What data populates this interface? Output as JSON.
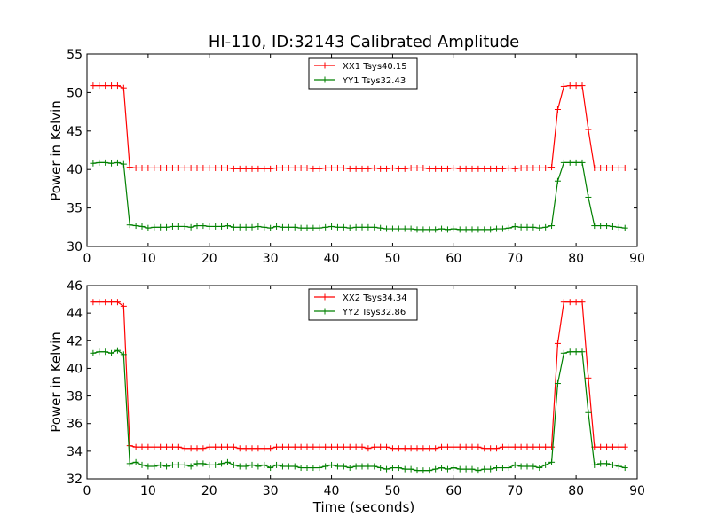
{
  "chart_data": [
    {
      "type": "line",
      "title": "HI-110, ID:32143 Calibrated Amplitude",
      "xlabel": "",
      "ylabel": "Power in Kelvin",
      "xlim": [
        0,
        90
      ],
      "ylim": [
        30,
        55
      ],
      "xticks": [
        "0",
        "10",
        "20",
        "30",
        "40",
        "50",
        "60",
        "70",
        "80",
        "90"
      ],
      "yticks": [
        "30",
        "35",
        "40",
        "45",
        "50",
        "55"
      ],
      "legend_position": "top-center",
      "grid": false,
      "x": [
        1,
        2,
        3,
        4,
        5,
        6,
        7,
        8,
        9,
        10,
        11,
        12,
        13,
        14,
        15,
        16,
        17,
        18,
        19,
        20,
        21,
        22,
        23,
        24,
        25,
        26,
        27,
        28,
        29,
        30,
        31,
        32,
        33,
        34,
        35,
        36,
        37,
        38,
        39,
        40,
        41,
        42,
        43,
        44,
        45,
        46,
        47,
        48,
        49,
        50,
        51,
        52,
        53,
        54,
        55,
        56,
        57,
        58,
        59,
        60,
        61,
        62,
        63,
        64,
        65,
        66,
        67,
        68,
        69,
        70,
        71,
        72,
        73,
        74,
        75,
        76,
        77,
        78,
        79,
        80,
        81,
        82,
        83,
        84,
        85,
        86,
        87,
        88
      ],
      "series": [
        {
          "name": "XX1 Tsys40.15",
          "color": "#ff0000",
          "values": [
            50.9,
            50.9,
            50.9,
            50.9,
            50.9,
            50.6,
            40.3,
            40.2,
            40.2,
            40.2,
            40.2,
            40.2,
            40.2,
            40.2,
            40.2,
            40.2,
            40.2,
            40.2,
            40.2,
            40.2,
            40.2,
            40.2,
            40.2,
            40.1,
            40.1,
            40.1,
            40.1,
            40.1,
            40.1,
            40.1,
            40.2,
            40.2,
            40.2,
            40.2,
            40.2,
            40.2,
            40.1,
            40.1,
            40.2,
            40.2,
            40.2,
            40.2,
            40.1,
            40.1,
            40.1,
            40.1,
            40.2,
            40.1,
            40.1,
            40.2,
            40.1,
            40.1,
            40.2,
            40.2,
            40.2,
            40.1,
            40.1,
            40.1,
            40.1,
            40.2,
            40.1,
            40.1,
            40.1,
            40.1,
            40.1,
            40.1,
            40.1,
            40.1,
            40.2,
            40.1,
            40.2,
            40.2,
            40.2,
            40.2,
            40.2,
            40.3,
            47.8,
            50.8,
            50.9,
            50.9,
            50.9,
            45.2,
            40.2,
            40.2,
            40.2,
            40.2,
            40.2,
            40.2
          ]
        },
        {
          "name": "YY1 Tsys32.43",
          "color": "#008000",
          "values": [
            40.8,
            40.9,
            40.9,
            40.8,
            40.9,
            40.7,
            32.8,
            32.7,
            32.6,
            32.4,
            32.5,
            32.5,
            32.5,
            32.6,
            32.6,
            32.6,
            32.5,
            32.7,
            32.7,
            32.6,
            32.6,
            32.6,
            32.7,
            32.5,
            32.5,
            32.5,
            32.5,
            32.6,
            32.5,
            32.4,
            32.6,
            32.5,
            32.5,
            32.5,
            32.4,
            32.4,
            32.4,
            32.4,
            32.5,
            32.6,
            32.5,
            32.5,
            32.4,
            32.5,
            32.5,
            32.5,
            32.5,
            32.4,
            32.3,
            32.3,
            32.3,
            32.3,
            32.3,
            32.2,
            32.2,
            32.2,
            32.2,
            32.3,
            32.2,
            32.3,
            32.2,
            32.2,
            32.2,
            32.2,
            32.2,
            32.2,
            32.3,
            32.3,
            32.4,
            32.6,
            32.5,
            32.5,
            32.5,
            32.4,
            32.5,
            32.7,
            38.5,
            40.9,
            40.9,
            40.9,
            40.9,
            36.4,
            32.7,
            32.7,
            32.7,
            32.6,
            32.5,
            32.4
          ]
        }
      ]
    },
    {
      "type": "line",
      "title": "",
      "xlabel": "Time (seconds)",
      "ylabel": "Power in Kelvin",
      "xlim": [
        0,
        90
      ],
      "ylim": [
        32,
        46
      ],
      "xticks": [
        "0",
        "10",
        "20",
        "30",
        "40",
        "50",
        "60",
        "70",
        "80",
        "90"
      ],
      "yticks": [
        "32",
        "34",
        "36",
        "38",
        "40",
        "42",
        "44",
        "46"
      ],
      "legend_position": "top-center",
      "grid": false,
      "x": [
        1,
        2,
        3,
        4,
        5,
        6,
        7,
        8,
        9,
        10,
        11,
        12,
        13,
        14,
        15,
        16,
        17,
        18,
        19,
        20,
        21,
        22,
        23,
        24,
        25,
        26,
        27,
        28,
        29,
        30,
        31,
        32,
        33,
        34,
        35,
        36,
        37,
        38,
        39,
        40,
        41,
        42,
        43,
        44,
        45,
        46,
        47,
        48,
        49,
        50,
        51,
        52,
        53,
        54,
        55,
        56,
        57,
        58,
        59,
        60,
        61,
        62,
        63,
        64,
        65,
        66,
        67,
        68,
        69,
        70,
        71,
        72,
        73,
        74,
        75,
        76,
        77,
        78,
        79,
        80,
        81,
        82,
        83,
        84,
        85,
        86,
        87,
        88
      ],
      "series": [
        {
          "name": "XX2 Tsys34.34",
          "color": "#ff0000",
          "values": [
            44.8,
            44.8,
            44.8,
            44.8,
            44.8,
            44.5,
            34.4,
            34.3,
            34.3,
            34.3,
            34.3,
            34.3,
            34.3,
            34.3,
            34.3,
            34.2,
            34.2,
            34.2,
            34.2,
            34.3,
            34.3,
            34.3,
            34.3,
            34.3,
            34.2,
            34.2,
            34.2,
            34.2,
            34.2,
            34.2,
            34.3,
            34.3,
            34.3,
            34.3,
            34.3,
            34.3,
            34.3,
            34.3,
            34.3,
            34.3,
            34.3,
            34.3,
            34.3,
            34.3,
            34.3,
            34.2,
            34.3,
            34.3,
            34.3,
            34.2,
            34.2,
            34.2,
            34.2,
            34.2,
            34.2,
            34.2,
            34.2,
            34.3,
            34.3,
            34.3,
            34.3,
            34.3,
            34.3,
            34.3,
            34.2,
            34.2,
            34.2,
            34.3,
            34.3,
            34.3,
            34.3,
            34.3,
            34.3,
            34.3,
            34.3,
            34.3,
            41.8,
            44.8,
            44.8,
            44.8,
            44.8,
            39.3,
            34.3,
            34.3,
            34.3,
            34.3,
            34.3,
            34.3
          ]
        },
        {
          "name": "YY2 Tsys32.86",
          "color": "#008000",
          "values": [
            41.1,
            41.2,
            41.2,
            41.1,
            41.3,
            41.0,
            33.1,
            33.2,
            33.0,
            32.9,
            32.9,
            33.0,
            32.9,
            33.0,
            33.0,
            33.0,
            32.9,
            33.1,
            33.1,
            33.0,
            33.0,
            33.1,
            33.2,
            33.0,
            32.9,
            32.9,
            33.0,
            32.9,
            33.0,
            32.8,
            33.0,
            32.9,
            32.9,
            32.9,
            32.8,
            32.8,
            32.8,
            32.8,
            32.9,
            33.0,
            32.9,
            32.9,
            32.8,
            32.9,
            32.9,
            32.9,
            32.9,
            32.8,
            32.7,
            32.8,
            32.8,
            32.7,
            32.7,
            32.6,
            32.6,
            32.6,
            32.7,
            32.8,
            32.7,
            32.8,
            32.7,
            32.7,
            32.7,
            32.6,
            32.7,
            32.7,
            32.8,
            32.8,
            32.8,
            33.0,
            32.9,
            32.9,
            32.9,
            32.8,
            33.0,
            33.2,
            38.9,
            41.1,
            41.2,
            41.2,
            41.2,
            36.8,
            33.0,
            33.1,
            33.1,
            33.0,
            32.9,
            32.8
          ]
        }
      ]
    }
  ]
}
